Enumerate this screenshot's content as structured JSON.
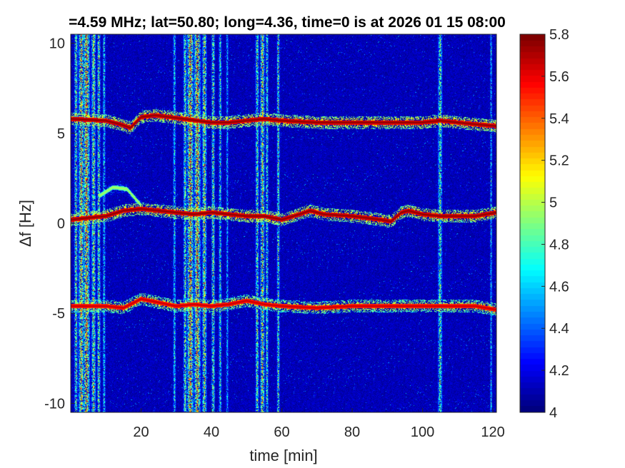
{
  "chart_data": {
    "type": "heatmap",
    "title": "=4.59 MHz;  lat=50.80; long=4.36, time=0 is at 2026 01 15 08:00",
    "xlabel": "time [min]",
    "ylabel": "Δf [Hz]",
    "xlim": [
      0,
      121
    ],
    "ylim": [
      -10.5,
      10.5
    ],
    "xticks": [
      20,
      40,
      60,
      80,
      100,
      120
    ],
    "yticks": [
      10,
      5,
      0,
      -5,
      -10
    ],
    "colorbar": {
      "colormap": "jet",
      "range": [
        4,
        5.8
      ],
      "ticks": [
        5.8,
        5.6,
        5.4,
        5.2,
        5,
        4.8,
        4.6,
        4.4,
        4.2,
        4
      ]
    },
    "background_level": 4.1,
    "vertical_interference_bands": [
      {
        "t": 1.5,
        "width": 0.6,
        "level": 5.3
      },
      {
        "t": 3.0,
        "width": 1.0,
        "level": 5.6
      },
      {
        "t": 4.5,
        "width": 1.2,
        "level": 5.7
      },
      {
        "t": 6.5,
        "width": 0.8,
        "level": 5.4
      },
      {
        "t": 8.0,
        "width": 0.6,
        "level": 5.3
      },
      {
        "t": 9.5,
        "width": 0.5,
        "level": 5.0
      },
      {
        "t": 29.5,
        "width": 0.5,
        "level": 5.0
      },
      {
        "t": 32.5,
        "width": 0.6,
        "level": 5.3
      },
      {
        "t": 34.0,
        "width": 1.2,
        "level": 5.7
      },
      {
        "t": 36.0,
        "width": 1.2,
        "level": 5.7
      },
      {
        "t": 38.0,
        "width": 0.8,
        "level": 5.5
      },
      {
        "t": 40.5,
        "width": 0.6,
        "level": 5.3
      },
      {
        "t": 42.5,
        "width": 0.5,
        "level": 5.1
      },
      {
        "t": 44.5,
        "width": 0.4,
        "level": 4.9
      },
      {
        "t": 53.0,
        "width": 0.6,
        "level": 5.3
      },
      {
        "t": 54.5,
        "width": 0.8,
        "level": 5.5
      },
      {
        "t": 55.8,
        "width": 0.5,
        "level": 5.2
      },
      {
        "t": 59.0,
        "width": 0.5,
        "level": 5.3
      },
      {
        "t": 105.0,
        "width": 0.8,
        "level": 5.2
      },
      {
        "t": 119.5,
        "width": 0.4,
        "level": 4.9
      }
    ],
    "series": [
      {
        "level": 5.8,
        "x": [
          0,
          10,
          14,
          17,
          18,
          20,
          24,
          28,
          32,
          36,
          40,
          45,
          50,
          55,
          60,
          70,
          80,
          90,
          100,
          105,
          110,
          115,
          121
        ],
        "y": [
          5.8,
          5.7,
          5.5,
          5.3,
          5.5,
          5.9,
          6.0,
          5.9,
          5.8,
          5.7,
          5.6,
          5.6,
          5.7,
          5.8,
          5.7,
          5.6,
          5.6,
          5.6,
          5.6,
          5.7,
          5.6,
          5.5,
          5.4
        ]
      },
      {
        "level": 5.8,
        "x": [
          0,
          5,
          10,
          15,
          20,
          25,
          30,
          35,
          40,
          45,
          50,
          55,
          60,
          65,
          68,
          72,
          80,
          88,
          91,
          94,
          96,
          100,
          105,
          110,
          115,
          121
        ],
        "y": [
          0.2,
          0.3,
          0.4,
          0.7,
          0.8,
          0.7,
          0.6,
          0.5,
          0.6,
          0.5,
          0.4,
          0.4,
          0.2,
          0.5,
          0.7,
          0.5,
          0.4,
          0.2,
          0.1,
          0.6,
          0.7,
          0.5,
          0.4,
          0.4,
          0.4,
          0.6
        ]
      },
      {
        "level": 5.7,
        "x": [
          0,
          5,
          10,
          15,
          20,
          25,
          30,
          35,
          40,
          45,
          50,
          55,
          60,
          70,
          80,
          90,
          100,
          110,
          115,
          121
        ],
        "y": [
          -4.6,
          -4.6,
          -4.6,
          -4.7,
          -4.2,
          -4.4,
          -4.6,
          -4.5,
          -4.6,
          -4.5,
          -4.3,
          -4.5,
          -4.6,
          -4.7,
          -4.6,
          -4.6,
          -4.6,
          -4.6,
          -4.6,
          -4.8
        ]
      },
      {
        "level": 5.0,
        "x": [
          8,
          12,
          16,
          20
        ],
        "y": [
          1.5,
          2.0,
          1.9,
          1.0
        ]
      }
    ]
  }
}
